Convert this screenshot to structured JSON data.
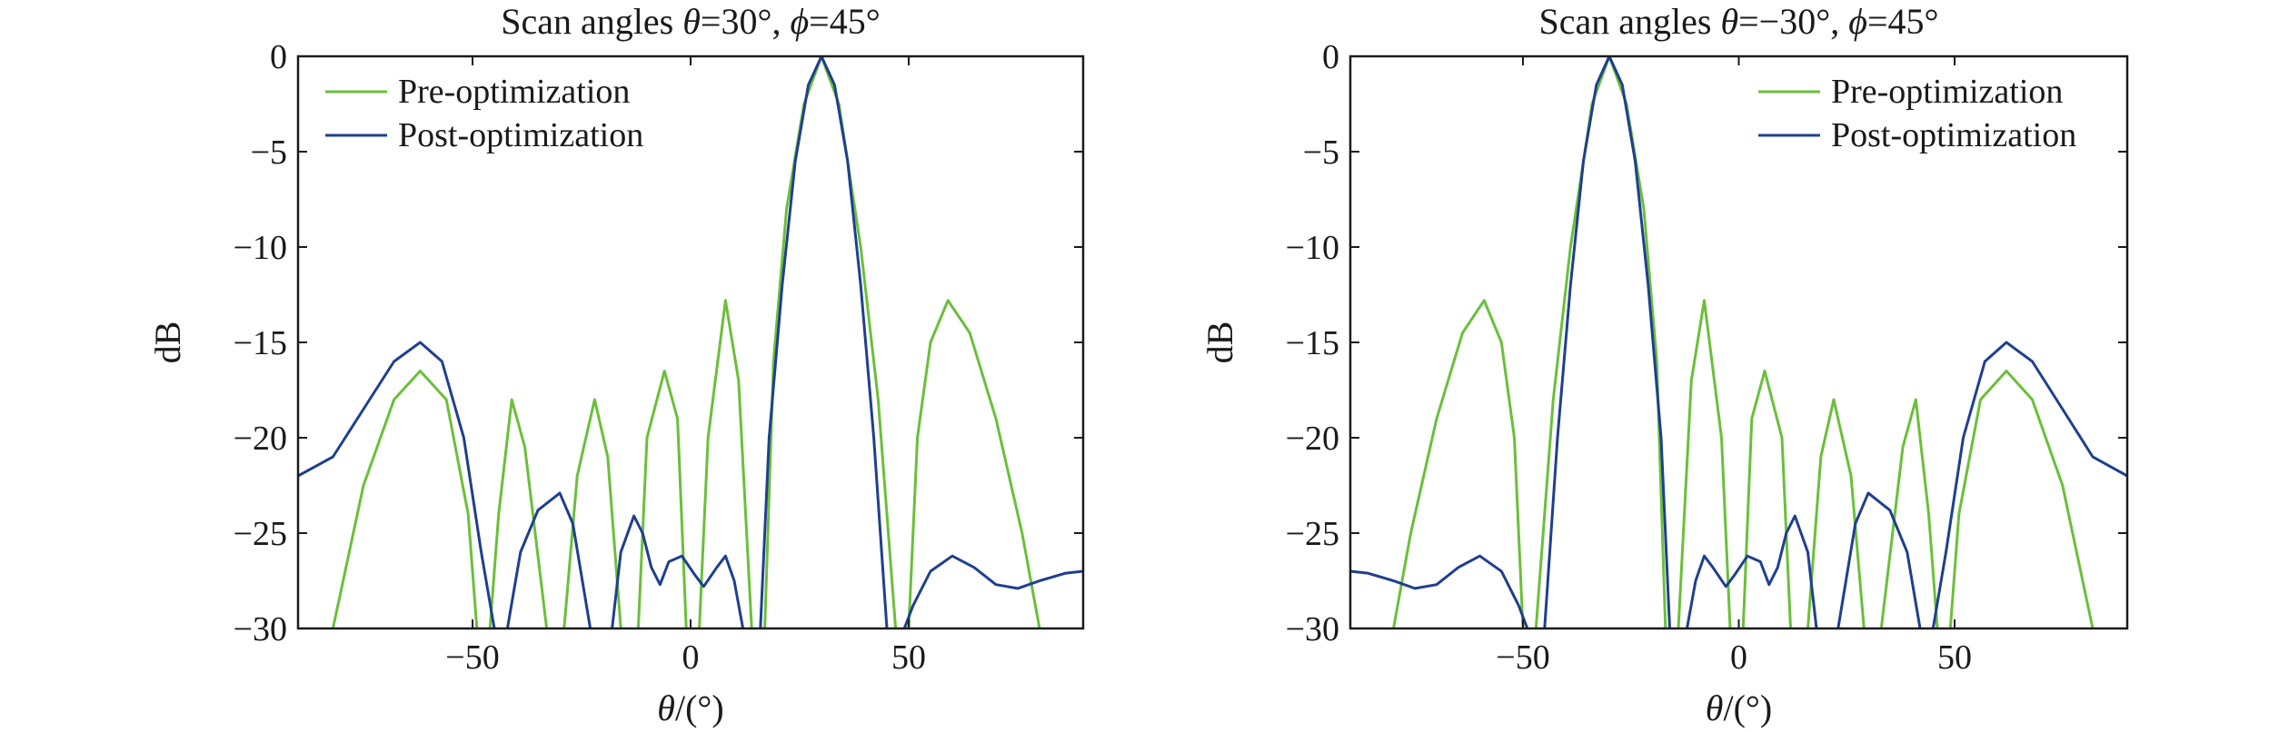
{
  "colors": {
    "pre": "#6bbf3b",
    "post": "#1f3f8f",
    "axis": "#1a1a1a"
  },
  "chart_data": [
    {
      "type": "line",
      "title_parts": [
        "Scan angles ",
        "θ",
        "=30°, ",
        "ϕ",
        "=45°"
      ],
      "xlabel_parts": [
        "θ",
        "/(°)"
      ],
      "ylabel": "dB",
      "xlim": [
        -90,
        90
      ],
      "ylim": [
        -30,
        0
      ],
      "xticks": [
        -50,
        0,
        50
      ],
      "xtick_labels": [
        "−50",
        "0",
        "50"
      ],
      "yticks": [
        0,
        -5,
        -10,
        -15,
        -20,
        -25,
        -30
      ],
      "ytick_labels": [
        "0",
        "−5",
        "−10",
        "−15",
        "−20",
        "−25",
        "−30"
      ],
      "grid": false,
      "legend_position": "top-left",
      "series": [
        {
          "name": "Pre-optimization",
          "color_key": "pre",
          "segments": [
            [
              [
                -82,
                -30
              ],
              [
                -75,
                -22.5
              ],
              [
                -68,
                -18
              ],
              [
                -62,
                -16.5
              ],
              [
                -56,
                -18
              ],
              [
                -51,
                -24
              ],
              [
                -49,
                -30
              ]
            ],
            [
              [
                -46,
                -30
              ],
              [
                -44,
                -24
              ],
              [
                -41,
                -18
              ],
              [
                -38,
                -20.5
              ],
              [
                -33,
                -30
              ]
            ],
            [
              [
                -29,
                -30
              ],
              [
                -26,
                -22
              ],
              [
                -22,
                -18
              ],
              [
                -19,
                -21
              ],
              [
                -16,
                -30
              ]
            ],
            [
              [
                -12,
                -30
              ],
              [
                -10,
                -20
              ],
              [
                -6,
                -16.5
              ],
              [
                -3,
                -19
              ],
              [
                -1,
                -30
              ]
            ],
            [
              [
                2,
                -30
              ],
              [
                4,
                -20
              ],
              [
                8,
                -12.8
              ],
              [
                11,
                -17
              ],
              [
                14,
                -30
              ]
            ],
            [
              [
                17,
                -30
              ],
              [
                19,
                -16
              ],
              [
                22,
                -8
              ],
              [
                26,
                -2.5
              ],
              [
                30,
                0
              ],
              [
                34,
                -2.5
              ],
              [
                39,
                -10
              ],
              [
                43,
                -18
              ],
              [
                47,
                -30
              ]
            ],
            [
              [
                50,
                -30
              ],
              [
                52,
                -20
              ],
              [
                55,
                -15
              ],
              [
                59,
                -12.8
              ],
              [
                64,
                -14.5
              ],
              [
                70,
                -19
              ],
              [
                76,
                -25
              ],
              [
                80,
                -30
              ]
            ]
          ]
        },
        {
          "name": "Post-optimization",
          "color_key": "post",
          "segments": [
            [
              [
                -90,
                -22
              ],
              [
                -82,
                -21
              ],
              [
                -75,
                -18.5
              ],
              [
                -68,
                -16
              ],
              [
                -62,
                -15
              ],
              [
                -57,
                -16
              ],
              [
                -52,
                -20
              ],
              [
                -48,
                -26
              ],
              [
                -45,
                -30
              ]
            ],
            [
              [
                -42,
                -30
              ],
              [
                -39,
                -26
              ],
              [
                -35,
                -23.8
              ],
              [
                -30,
                -22.9
              ],
              [
                -27,
                -24.5
              ],
              [
                -23,
                -30
              ]
            ],
            [
              [
                -18,
                -30
              ],
              [
                -16,
                -26
              ],
              [
                -13,
                -24.1
              ],
              [
                -11,
                -25
              ],
              [
                -9,
                -26.8
              ],
              [
                -7,
                -27.7
              ],
              [
                -5,
                -26.5
              ],
              [
                -2,
                -26.2
              ],
              [
                1,
                -27.2
              ],
              [
                3,
                -27.8
              ],
              [
                6,
                -26.8
              ],
              [
                8,
                -26.2
              ],
              [
                10,
                -27.5
              ],
              [
                12,
                -30
              ]
            ],
            [
              [
                16,
                -30
              ],
              [
                18,
                -20
              ],
              [
                21,
                -12
              ],
              [
                24,
                -5.5
              ],
              [
                27,
                -1.5
              ],
              [
                30,
                0
              ],
              [
                33,
                -1.5
              ],
              [
                36,
                -5.5
              ],
              [
                39,
                -12
              ],
              [
                42,
                -20
              ],
              [
                45,
                -30
              ]
            ],
            [
              [
                49,
                -30
              ],
              [
                51,
                -28.8
              ],
              [
                55,
                -27
              ],
              [
                60,
                -26.2
              ],
              [
                65,
                -26.8
              ],
              [
                70,
                -27.7
              ],
              [
                75,
                -27.9
              ],
              [
                80,
                -27.5
              ],
              [
                86,
                -27.1
              ],
              [
                90,
                -27
              ]
            ]
          ]
        }
      ]
    },
    {
      "type": "line",
      "title_parts": [
        "Scan angles ",
        "θ",
        "=−30°, ",
        "ϕ",
        "=45°"
      ],
      "xlabel_parts": [
        "θ",
        "/(°)"
      ],
      "ylabel": "dB",
      "xlim": [
        -90,
        90
      ],
      "ylim": [
        -30,
        0
      ],
      "xticks": [
        -50,
        0,
        50
      ],
      "xtick_labels": [
        "−50",
        "0",
        "50"
      ],
      "yticks": [
        0,
        -5,
        -10,
        -15,
        -20,
        -25,
        -30
      ],
      "ytick_labels": [
        "0",
        "−5",
        "−10",
        "−15",
        "−20",
        "−25",
        "−30"
      ],
      "grid": false,
      "legend_position": "top-right",
      "series": [
        {
          "name": "Pre-optimization",
          "color_key": "pre",
          "segments": [
            [
              [
                -80,
                -30
              ],
              [
                -76,
                -25
              ],
              [
                -70,
                -19
              ],
              [
                -64,
                -14.5
              ],
              [
                -59,
                -12.8
              ],
              [
                -55,
                -15
              ],
              [
                -52,
                -20
              ],
              [
                -50,
                -30
              ]
            ],
            [
              [
                -47,
                -30
              ],
              [
                -43,
                -18
              ],
              [
                -39,
                -10
              ],
              [
                -34,
                -2.5
              ],
              [
                -30,
                0
              ],
              [
                -26,
                -2.5
              ],
              [
                -22,
                -8
              ],
              [
                -19,
                -16
              ],
              [
                -17,
                -30
              ]
            ],
            [
              [
                -14,
                -30
              ],
              [
                -11,
                -17
              ],
              [
                -8,
                -12.8
              ],
              [
                -4,
                -20
              ],
              [
                -2,
                -30
              ]
            ],
            [
              [
                1,
                -30
              ],
              [
                3,
                -19
              ],
              [
                6,
                -16.5
              ],
              [
                10,
                -20
              ],
              [
                12,
                -30
              ]
            ],
            [
              [
                16,
                -30
              ],
              [
                19,
                -21
              ],
              [
                22,
                -18
              ],
              [
                26,
                -22
              ],
              [
                29,
                -30
              ]
            ],
            [
              [
                33,
                -30
              ],
              [
                38,
                -20.5
              ],
              [
                41,
                -18
              ],
              [
                44,
                -24
              ],
              [
                46,
                -30
              ]
            ],
            [
              [
                49,
                -30
              ],
              [
                51,
                -24
              ],
              [
                56,
                -18
              ],
              [
                62,
                -16.5
              ],
              [
                68,
                -18
              ],
              [
                75,
                -22.5
              ],
              [
                82,
                -30
              ]
            ]
          ]
        },
        {
          "name": "Post-optimization",
          "color_key": "post",
          "segments": [
            [
              [
                -90,
                -27
              ],
              [
                -86,
                -27.1
              ],
              [
                -80,
                -27.5
              ],
              [
                -75,
                -27.9
              ],
              [
                -70,
                -27.7
              ],
              [
                -65,
                -26.8
              ],
              [
                -60,
                -26.2
              ],
              [
                -55,
                -27
              ],
              [
                -51,
                -28.8
              ],
              [
                -49,
                -30
              ]
            ],
            [
              [
                -45,
                -30
              ],
              [
                -42,
                -20
              ],
              [
                -39,
                -12
              ],
              [
                -36,
                -5.5
              ],
              [
                -33,
                -1.5
              ],
              [
                -30,
                0
              ],
              [
                -27,
                -1.5
              ],
              [
                -24,
                -5.5
              ],
              [
                -21,
                -12
              ],
              [
                -18,
                -20
              ],
              [
                -16,
                -30
              ]
            ],
            [
              [
                -12,
                -30
              ],
              [
                -10,
                -27.5
              ],
              [
                -8,
                -26.2
              ],
              [
                -6,
                -26.8
              ],
              [
                -3,
                -27.8
              ],
              [
                -1,
                -27.2
              ],
              [
                2,
                -26.2
              ],
              [
                5,
                -26.5
              ],
              [
                7,
                -27.7
              ],
              [
                9,
                -26.8
              ],
              [
                11,
                -25
              ],
              [
                13,
                -24.1
              ],
              [
                16,
                -26
              ],
              [
                18,
                -30
              ]
            ],
            [
              [
                23,
                -30
              ],
              [
                27,
                -24.5
              ],
              [
                30,
                -22.9
              ],
              [
                35,
                -23.8
              ],
              [
                39,
                -26
              ],
              [
                42,
                -30
              ]
            ],
            [
              [
                45,
                -30
              ],
              [
                48,
                -26
              ],
              [
                52,
                -20
              ],
              [
                57,
                -16
              ],
              [
                62,
                -15
              ],
              [
                68,
                -16
              ],
              [
                75,
                -18.5
              ],
              [
                82,
                -21
              ],
              [
                90,
                -22
              ]
            ]
          ]
        }
      ]
    }
  ]
}
